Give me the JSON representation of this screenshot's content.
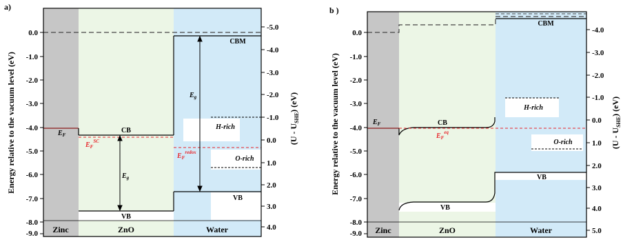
{
  "panels": [
    {
      "tag": "a)",
      "left_ylabel": "Energy relative to the vacuum level (eV)",
      "right_ylabel": "(U - U",
      "right_ylabel_sub": "SHE",
      "right_ylabel_tail": ") (eV)",
      "left_ticks": [
        "0.0",
        "-1.0",
        "-2.0",
        "-3.0",
        "-4.0",
        "-5.0",
        "-6.0",
        "-7.0",
        "-8.0",
        "-9.0"
      ],
      "right_ticks": [
        "-5.0",
        "-4.0",
        "-3.0",
        "-2.0",
        "-1.0",
        "0.0",
        "1.0",
        "2.0",
        "3.0",
        "4.0"
      ],
      "regions": [
        "Zinc",
        "ZnO",
        "Water"
      ],
      "labels": {
        "ef": "E",
        "ef_sub": "F",
        "efsc": "E",
        "efsc_sub": "F",
        "efsc_sup": "SC",
        "cb": "CB",
        "vb": "VB",
        "cbm": "CBM",
        "vbw": "VB",
        "eg1": "E",
        "eg1_sub": "g",
        "eg2": "E",
        "eg2_sub": "g",
        "efredox": "E",
        "efredox_sub": "F",
        "efredox_sup": "redox",
        "hrich": "H-rich",
        "orich": "O-rich"
      }
    },
    {
      "tag": "b )",
      "left_ylabel": "Energy relative to the vacuum level (eV)",
      "right_ylabel": "(U - U",
      "right_ylabel_sub": "SHE",
      "right_ylabel_tail": ") (eV)",
      "left_ticks": [
        "0.0",
        "-1.0",
        "-2.0",
        "-3.0",
        "-4.0",
        "-5.0",
        "-6.0",
        "-7.0",
        "-8.0",
        "-9.0"
      ],
      "right_ticks": [
        "-4.0",
        "-3.0",
        "-2.0",
        "-1.0",
        "0.0",
        "1.0",
        "2.0",
        "3.0",
        "4.0",
        "5.0"
      ],
      "regions": [
        "Zinc",
        "ZnO",
        "Water"
      ],
      "labels": {
        "ef": "E",
        "ef_sub": "F",
        "cb": "CB",
        "vb": "VB",
        "cbm": "CBM",
        "vbw": "VB",
        "efeq": "E",
        "efeq_sub": "F",
        "efeq_sup": "eq",
        "hrich": "H-rich",
        "orich": "O-rich"
      }
    }
  ],
  "colors": {
    "zinc": "#c6c6c6",
    "zno": "#ecf6e6",
    "water": "#d2eaf8",
    "fermi_line": "#8b1a1a",
    "redox": "#e8262b",
    "line": "#000000"
  }
}
